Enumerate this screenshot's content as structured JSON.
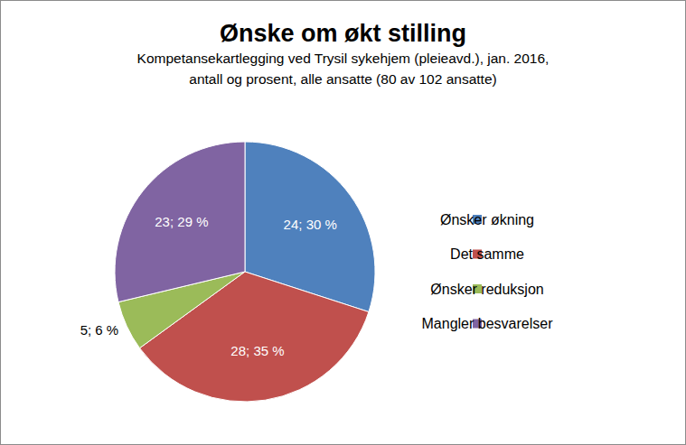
{
  "chart_data": {
    "type": "pie",
    "title": "Ønske om økt stilling",
    "subtitle": [
      "Kompetansekartlegging ved Trysil sykehjem (pleieavd.), jan. 2016,",
      "antall og prosent, alle ansatte (80 av 102 ansatte)"
    ],
    "categories": [
      "Ønsker økning",
      "Det samme",
      "Ønsker reduksjon",
      "Mangler besvarelser"
    ],
    "values": [
      24,
      28,
      5,
      23
    ],
    "value_labels": [
      "24; 30 %",
      "28; 35 %",
      "5; 6 %",
      "23; 29 %"
    ],
    "colors": [
      "#4f81bd",
      "#c0504d",
      "#9bbb59",
      "#8064a2"
    ],
    "data_labels": true,
    "legend": "right"
  }
}
